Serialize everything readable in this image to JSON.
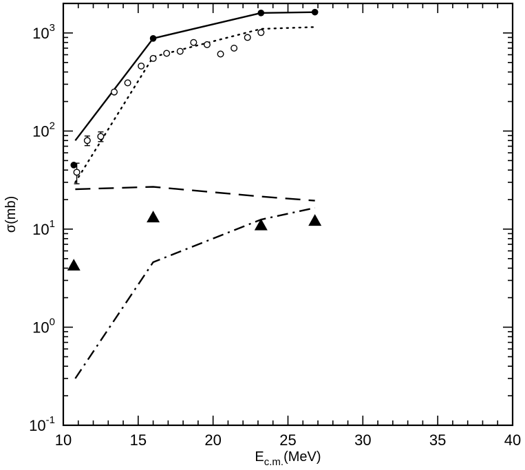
{
  "chart_data": {
    "type": "line",
    "title": "",
    "xlabel": {
      "main": "E",
      "sub": "c.m.",
      "unit": "(MeV)"
    },
    "ylabel": "σ(mb)",
    "xlim": [
      10,
      40
    ],
    "ylim": [
      0.1,
      2000
    ],
    "yscale": "log",
    "grid": false,
    "legend": "none",
    "x_ticks": [
      10,
      15,
      20,
      25,
      30,
      35,
      40
    ],
    "y_ticks": [
      {
        "value": 0.1,
        "base": "10",
        "exp": "-1"
      },
      {
        "value": 1,
        "base": "10",
        "exp": "0"
      },
      {
        "value": 10,
        "base": "10",
        "exp": "1"
      },
      {
        "value": 100,
        "base": "10",
        "exp": "2"
      },
      {
        "value": 1000,
        "base": "10",
        "exp": "3"
      }
    ],
    "lines": [
      {
        "style": "solid",
        "x": [
          10.8,
          16.0,
          23.2,
          26.8
        ],
        "y": [
          80,
          880,
          1600,
          1630
        ]
      },
      {
        "style": "dotted",
        "x": [
          10.8,
          16.0,
          23.2,
          26.8
        ],
        "y": [
          30,
          570,
          1100,
          1150
        ]
      },
      {
        "style": "dashed",
        "x": [
          10.8,
          16.0,
          23.2,
          26.8
        ],
        "y": [
          25.5,
          27,
          21.5,
          19.5
        ]
      },
      {
        "style": "dashdot",
        "x": [
          10.8,
          16.0,
          23.2,
          26.8
        ],
        "y": [
          0.3,
          4.6,
          12.5,
          16.5
        ]
      }
    ],
    "scatter": [
      {
        "marker": "filled-circle",
        "x": [
          10.7,
          16.0,
          23.2,
          26.8
        ],
        "y": [
          45,
          880,
          1600,
          1630
        ]
      },
      {
        "marker": "open-circle",
        "x": [
          10.9,
          11.6,
          12.5,
          13.4,
          14.3,
          15.2,
          16.0,
          16.9,
          17.8,
          18.7,
          19.6,
          20.5,
          21.4,
          22.3,
          23.2
        ],
        "y": [
          38,
          80,
          88,
          250,
          310,
          460,
          550,
          620,
          650,
          800,
          760,
          610,
          700,
          900,
          1010
        ],
        "yerr": [
          9,
          9,
          10,
          0,
          0,
          0,
          0,
          0,
          0,
          0,
          0,
          0,
          0,
          0,
          0
        ]
      },
      {
        "marker": "filled-triangle",
        "x": [
          10.7,
          16.0,
          23.2,
          26.8
        ],
        "y": [
          4.2,
          13.0,
          10.8,
          12.0
        ]
      }
    ]
  }
}
